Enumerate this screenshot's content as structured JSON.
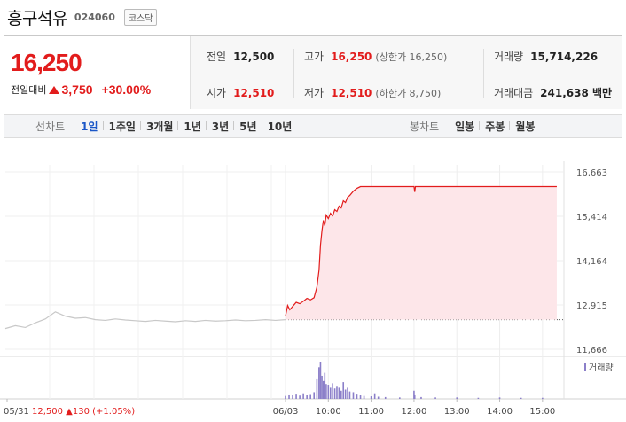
{
  "header": {
    "name": "흥구석유",
    "code": "024060",
    "market": "코스닥"
  },
  "price": {
    "current": "16,250",
    "change_label": "전일대비",
    "change_value": "3,750",
    "change_pct": "+30.00%",
    "direction": "up"
  },
  "stats": {
    "prev_close_label": "전일",
    "prev_close": "12,500",
    "high_label": "고가",
    "high": "16,250",
    "upper_limit": "(상한가 16,250)",
    "volume_label": "거래량",
    "volume": "15,714,226",
    "open_label": "시가",
    "open": "12,510",
    "low_label": "저가",
    "low": "12,510",
    "lower_limit": "(하한가 8,750)",
    "turnover_label": "거래대금",
    "turnover": "241,638 백만"
  },
  "line_tabs": {
    "lead": "선차트",
    "items": [
      "1일",
      "1주일",
      "3개월",
      "1년",
      "3년",
      "5년",
      "10년"
    ],
    "active_index": 0
  },
  "candle_tabs": {
    "lead": "봉차트",
    "items": [
      "일봉",
      "주봉",
      "월봉"
    ]
  },
  "colors": {
    "up": "#e21c1c",
    "active_tab": "#1a56c7",
    "area_fill": "#fde6e9",
    "prev_day_line": "#c8c8c8",
    "volume_bar": "#8b7fc9"
  },
  "chart_data": {
    "type": "line",
    "y_ticks": [
      "16,663",
      "15,414",
      "14,164",
      "12,915",
      "11,666"
    ],
    "ylim": [
      11666,
      16663
    ],
    "baseline": 12500,
    "x_ticks": [
      "05/31",
      "06/03",
      "10:00",
      "11:00",
      "12:00",
      "13:00",
      "14:00",
      "15:00"
    ],
    "prev_day_summary": {
      "date": "05/31",
      "close": "12,500",
      "change": "130",
      "change_pct": "(+1.05%)"
    },
    "volume_label": "거래량",
    "prev_day_series": [
      12250,
      12330,
      12280,
      12410,
      12520,
      12720,
      12600,
      12540,
      12560,
      12500,
      12480,
      12520,
      12490,
      12470,
      12450,
      12480,
      12460,
      12440,
      12470,
      12450,
      12480,
      12460,
      12470,
      12490,
      12470,
      12480,
      12500,
      12480,
      12500
    ],
    "today_series": [
      [
        "09:00",
        12600
      ],
      [
        "09:03",
        12900
      ],
      [
        "09:06",
        12780
      ],
      [
        "09:09",
        12850
      ],
      [
        "09:12",
        12920
      ],
      [
        "09:15",
        12990
      ],
      [
        "09:20",
        12950
      ],
      [
        "09:25",
        13020
      ],
      [
        "09:30",
        13100
      ],
      [
        "09:35",
        13060
      ],
      [
        "09:40",
        13120
      ],
      [
        "09:44",
        13420
      ],
      [
        "09:47",
        13900
      ],
      [
        "09:49",
        14600
      ],
      [
        "09:51",
        15000
      ],
      [
        "09:53",
        15300
      ],
      [
        "09:55",
        15150
      ],
      [
        "09:57",
        15450
      ],
      [
        "10:00",
        15350
      ],
      [
        "10:03",
        15500
      ],
      [
        "10:06",
        15420
      ],
      [
        "10:09",
        15600
      ],
      [
        "10:12",
        15550
      ],
      [
        "10:15",
        15700
      ],
      [
        "10:18",
        15650
      ],
      [
        "10:21",
        15850
      ],
      [
        "10:24",
        15800
      ],
      [
        "10:27",
        15950
      ],
      [
        "10:30",
        16000
      ],
      [
        "10:35",
        16120
      ],
      [
        "10:40",
        16200
      ],
      [
        "10:45",
        16250
      ],
      [
        "11:00",
        16250
      ],
      [
        "11:30",
        16250
      ],
      [
        "12:00",
        16250
      ],
      [
        "12:01",
        16100
      ],
      [
        "12:02",
        16250
      ],
      [
        "13:00",
        16250
      ],
      [
        "14:00",
        16250
      ],
      [
        "15:00",
        16250
      ],
      [
        "15:20",
        16250
      ]
    ],
    "volume_today": [
      [
        "09:00",
        0.08
      ],
      [
        "09:05",
        0.12
      ],
      [
        "09:10",
        0.1
      ],
      [
        "09:15",
        0.14
      ],
      [
        "09:20",
        0.09
      ],
      [
        "09:25",
        0.15
      ],
      [
        "09:30",
        0.11
      ],
      [
        "09:35",
        0.13
      ],
      [
        "09:40",
        0.18
      ],
      [
        "09:44",
        0.55
      ],
      [
        "09:47",
        0.85
      ],
      [
        "09:49",
        1.0
      ],
      [
        "09:51",
        0.62
      ],
      [
        "09:53",
        0.48
      ],
      [
        "09:55",
        0.7
      ],
      [
        "09:57",
        0.4
      ],
      [
        "10:00",
        0.38
      ],
      [
        "10:03",
        0.3
      ],
      [
        "10:06",
        0.42
      ],
      [
        "10:09",
        0.28
      ],
      [
        "10:12",
        0.35
      ],
      [
        "10:15",
        0.3
      ],
      [
        "10:18",
        0.22
      ],
      [
        "10:21",
        0.45
      ],
      [
        "10:24",
        0.25
      ],
      [
        "10:27",
        0.3
      ],
      [
        "10:30",
        0.2
      ],
      [
        "10:35",
        0.18
      ],
      [
        "10:40",
        0.14
      ],
      [
        "10:45",
        0.1
      ],
      [
        "10:50",
        0.08
      ],
      [
        "11:00",
        0.07
      ],
      [
        "11:05",
        0.15
      ],
      [
        "11:10",
        0.06
      ],
      [
        "11:20",
        0.05
      ],
      [
        "11:40",
        0.04
      ],
      [
        "12:00",
        0.22
      ],
      [
        "12:01",
        0.12
      ],
      [
        "12:10",
        0.05
      ],
      [
        "12:30",
        0.04
      ],
      [
        "13:00",
        0.04
      ],
      [
        "13:30",
        0.03
      ],
      [
        "14:00",
        0.04
      ],
      [
        "14:30",
        0.03
      ],
      [
        "15:00",
        0.03
      ]
    ]
  }
}
